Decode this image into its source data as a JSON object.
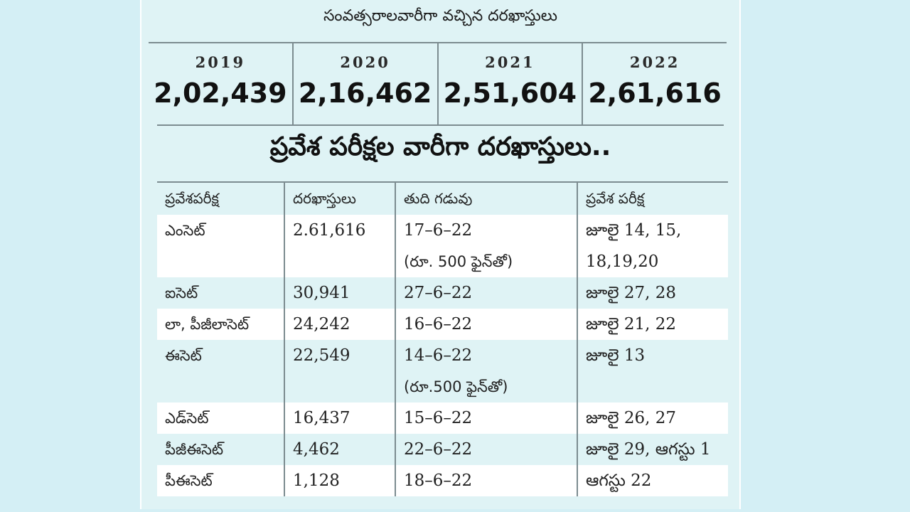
{
  "years_section": {
    "title": "సంవత్సరాలవారీగా వచ్చిన దరఖాస్తులు",
    "items": [
      {
        "year": "2019",
        "value": "2,02,439"
      },
      {
        "year": "2020",
        "value": "2,16,462"
      },
      {
        "year": "2021",
        "value": "2,51,604"
      },
      {
        "year": "2022",
        "value": "2,61,616"
      }
    ]
  },
  "exam_section": {
    "title": "ప్రవేశ పరీక్షల వారీగా దరఖాస్తులు..",
    "headers": [
      "ప్రవేశపరీక్ష",
      "దరఖాస్తులు",
      "తుది గడువు",
      "ప్రవేశ పరీక్ష"
    ],
    "rows": [
      {
        "exam": "ఎంసెట్",
        "applications": "2.61,616",
        "deadline": "17–6–22",
        "deadline_note": "(రూ. 500 ఫైన్‌తో)",
        "dates": "జూలై 14, 15,",
        "dates_2": "18,19,20"
      },
      {
        "exam": "ఐసెట్",
        "applications": "30,941",
        "deadline": "27–6–22",
        "dates": "జూలై 27, 28"
      },
      {
        "exam": "లా, పీజీలాసెట్",
        "applications": "24,242",
        "deadline": "16–6–22",
        "dates": "జూలై 21, 22"
      },
      {
        "exam": "ఈసెట్",
        "applications": "22,549",
        "deadline": "14–6–22",
        "deadline_note": "(రూ.500 ఫైన్‌తో)",
        "dates": "జూలై 13"
      },
      {
        "exam": "ఎడ్‌సెట్",
        "applications": "16,437",
        "deadline": "15–6–22",
        "dates": "జూలై 26, 27"
      },
      {
        "exam": "పీజీఈసెట్",
        "applications": "4,462",
        "deadline": "22–6–22",
        "dates": "జూలై 29, ఆగస్టు 1"
      },
      {
        "exam": "పీఈసెట్",
        "applications": "1,128",
        "deadline": "18–6–22",
        "dates": "ఆగస్టు 22"
      }
    ]
  }
}
